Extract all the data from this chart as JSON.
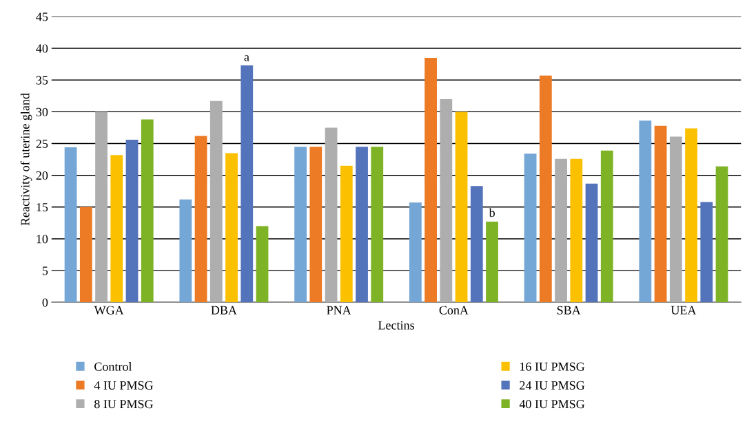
{
  "chart_data": {
    "type": "bar",
    "xlabel": "Lectins",
    "ylabel": "Reactivity of uterine gland",
    "categories": [
      "WGA",
      "DBA",
      "PNA",
      "ConA",
      "SBA",
      "UEA"
    ],
    "series": [
      {
        "name": "Control",
        "color": "#74a6d6",
        "values": [
          24.4,
          16.2,
          24.5,
          15.7,
          23.4,
          28.6
        ]
      },
      {
        "name": "4 IU PMSG",
        "color": "#ed7a24",
        "values": [
          15.0,
          26.2,
          24.5,
          38.5,
          35.7,
          27.8
        ]
      },
      {
        "name": "8 IU PMSG",
        "color": "#aeaeae",
        "values": [
          30.0,
          31.7,
          27.5,
          32.0,
          22.6,
          26.1
        ]
      },
      {
        "name": "16 IU PMSG",
        "color": "#fbc100",
        "values": [
          23.2,
          23.5,
          21.5,
          30.0,
          22.6,
          27.4
        ]
      },
      {
        "name": "24 IU PMSG",
        "color": "#5373bb",
        "values": [
          25.6,
          37.3,
          24.5,
          18.3,
          18.7,
          15.8
        ]
      },
      {
        "name": "40 IU PMSG",
        "color": "#7db324",
        "values": [
          28.8,
          12.0,
          24.5,
          12.7,
          23.9,
          21.4
        ]
      }
    ],
    "annotations": [
      "a",
      "b"
    ],
    "ylim": [
      0,
      45
    ],
    "yticks": [
      0,
      5,
      10,
      15,
      20,
      25,
      30,
      35,
      40,
      45
    ],
    "grid": "y",
    "legend": "bottom"
  }
}
